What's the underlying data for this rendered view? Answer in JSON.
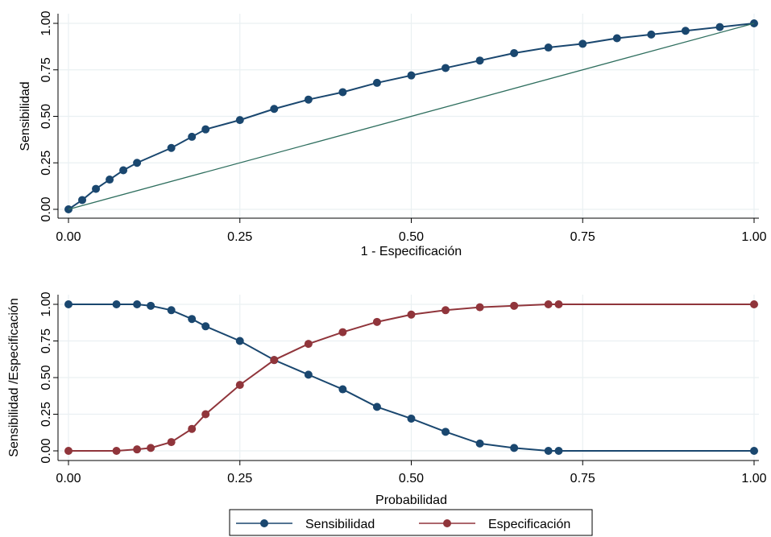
{
  "chart_data": [
    {
      "type": "line",
      "xlabel": "1 - Especificación",
      "ylabel": "Sensibilidad",
      "xlim": [
        0,
        1
      ],
      "ylim": [
        0,
        1
      ],
      "grid": true,
      "xticks": [
        {
          "value": 0,
          "label": "0.00"
        },
        {
          "value": 0.25,
          "label": "0.25"
        },
        {
          "value": 0.5,
          "label": "0.50"
        },
        {
          "value": 0.75,
          "label": "0.75"
        },
        {
          "value": 1,
          "label": "1.00"
        }
      ],
      "yticks": [
        {
          "value": 0,
          "label": "0.00"
        },
        {
          "value": 0.25,
          "label": "0.25"
        },
        {
          "value": 0.5,
          "label": "0.50"
        },
        {
          "value": 0.75,
          "label": "0.75"
        },
        {
          "value": 1,
          "label": "1.00"
        }
      ],
      "series": [
        {
          "color": "#1a476f",
          "markers": true,
          "x": [
            0,
            0.02,
            0.04,
            0.06,
            0.08,
            0.1,
            0.15,
            0.18,
            0.2,
            0.25,
            0.3,
            0.35,
            0.4,
            0.45,
            0.5,
            0.55,
            0.6,
            0.65,
            0.7,
            0.75,
            0.8,
            0.85,
            0.9,
            0.95,
            1
          ],
          "values": [
            0,
            0.05,
            0.11,
            0.16,
            0.21,
            0.25,
            0.33,
            0.39,
            0.43,
            0.48,
            0.54,
            0.59,
            0.63,
            0.68,
            0.72,
            0.76,
            0.8,
            0.84,
            0.87,
            0.89,
            0.92,
            0.94,
            0.96,
            0.98,
            1
          ]
        },
        {
          "color": "#2e6e5e",
          "markers": false,
          "x": [
            0,
            1
          ],
          "values": [
            0,
            1
          ]
        }
      ]
    },
    {
      "type": "line",
      "xlabel": "Probabilidad",
      "ylabel": "Sensibilidad /Especificación",
      "xlim": [
        0,
        1
      ],
      "ylim": [
        0,
        1
      ],
      "grid": true,
      "legend": "bottom",
      "xticks": [
        {
          "value": 0,
          "label": "0.00"
        },
        {
          "value": 0.25,
          "label": "0.25"
        },
        {
          "value": 0.5,
          "label": "0.50"
        },
        {
          "value": 0.75,
          "label": "0.75"
        },
        {
          "value": 1,
          "label": "1.00"
        }
      ],
      "yticks": [
        {
          "value": 0,
          "label": "0.00"
        },
        {
          "value": 0.25,
          "label": "0.25"
        },
        {
          "value": 0.5,
          "label": "0.50"
        },
        {
          "value": 0.75,
          "label": "0.75"
        },
        {
          "value": 1,
          "label": "1.00"
        }
      ],
      "series": [
        {
          "name": "Sensibilidad",
          "color": "#1a476f",
          "markers": true,
          "x": [
            0,
            0.07,
            0.1,
            0.12,
            0.15,
            0.18,
            0.2,
            0.25,
            0.3,
            0.35,
            0.4,
            0.45,
            0.5,
            0.55,
            0.6,
            0.65,
            0.7,
            0.715,
            1
          ],
          "values": [
            1,
            1,
            1,
            0.99,
            0.96,
            0.9,
            0.85,
            0.75,
            0.62,
            0.52,
            0.42,
            0.3,
            0.22,
            0.13,
            0.05,
            0.02,
            0,
            0,
            0
          ]
        },
        {
          "name": "Especificación",
          "color": "#90353b",
          "markers": true,
          "x": [
            0,
            0.07,
            0.1,
            0.12,
            0.15,
            0.18,
            0.2,
            0.25,
            0.3,
            0.35,
            0.4,
            0.45,
            0.5,
            0.55,
            0.6,
            0.65,
            0.7,
            0.715,
            1
          ],
          "values": [
            0,
            0,
            0.01,
            0.02,
            0.06,
            0.15,
            0.25,
            0.45,
            0.62,
            0.73,
            0.81,
            0.88,
            0.93,
            0.96,
            0.98,
            0.99,
            1,
            1,
            1
          ]
        }
      ]
    }
  ]
}
